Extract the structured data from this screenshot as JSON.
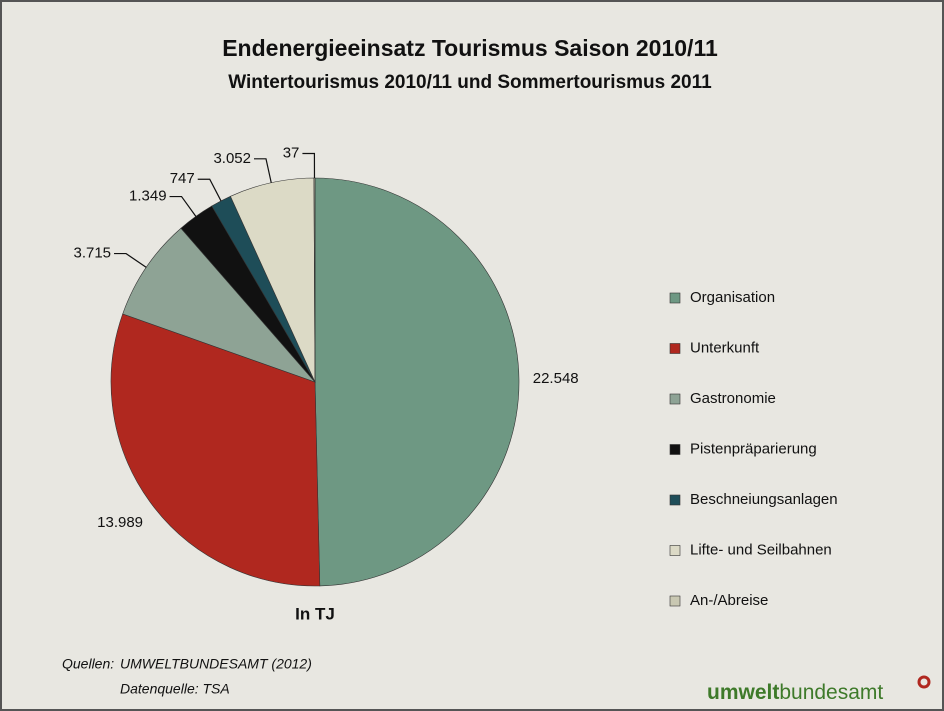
{
  "chart_data": {
    "type": "pie",
    "title": "Endenergieeinsatz Tourismus Saison 2010/11",
    "subtitle": "Wintertourismus 2010/11 und Sommertourismus 2011",
    "unit_label": "In TJ",
    "categories": [
      "Organisation",
      "Unterkunft",
      "Gastronomie",
      "Pistenpräparierung",
      "Beschneiungsanlagen",
      "Lifte- und Seilbahnen",
      "An-/Abreise"
    ],
    "values": [
      22548,
      13989,
      3715,
      1349,
      747,
      3052,
      37
    ],
    "value_labels": [
      "22.548",
      "13.989",
      "3.715",
      "1.349",
      "747",
      "3.052",
      "37"
    ],
    "colors": [
      "#6e9883",
      "#b0281f",
      "#8ea395",
      "#111111",
      "#1e4d58",
      "#dcdac6",
      "#c9c8b2"
    ],
    "source_label": "Quellen:",
    "source": "UMWELTBUNDESAMT (2012)",
    "data_source": "Datenquelle: TSA",
    "brand_bold": "umwelt",
    "brand_rest": "bundesamt"
  }
}
